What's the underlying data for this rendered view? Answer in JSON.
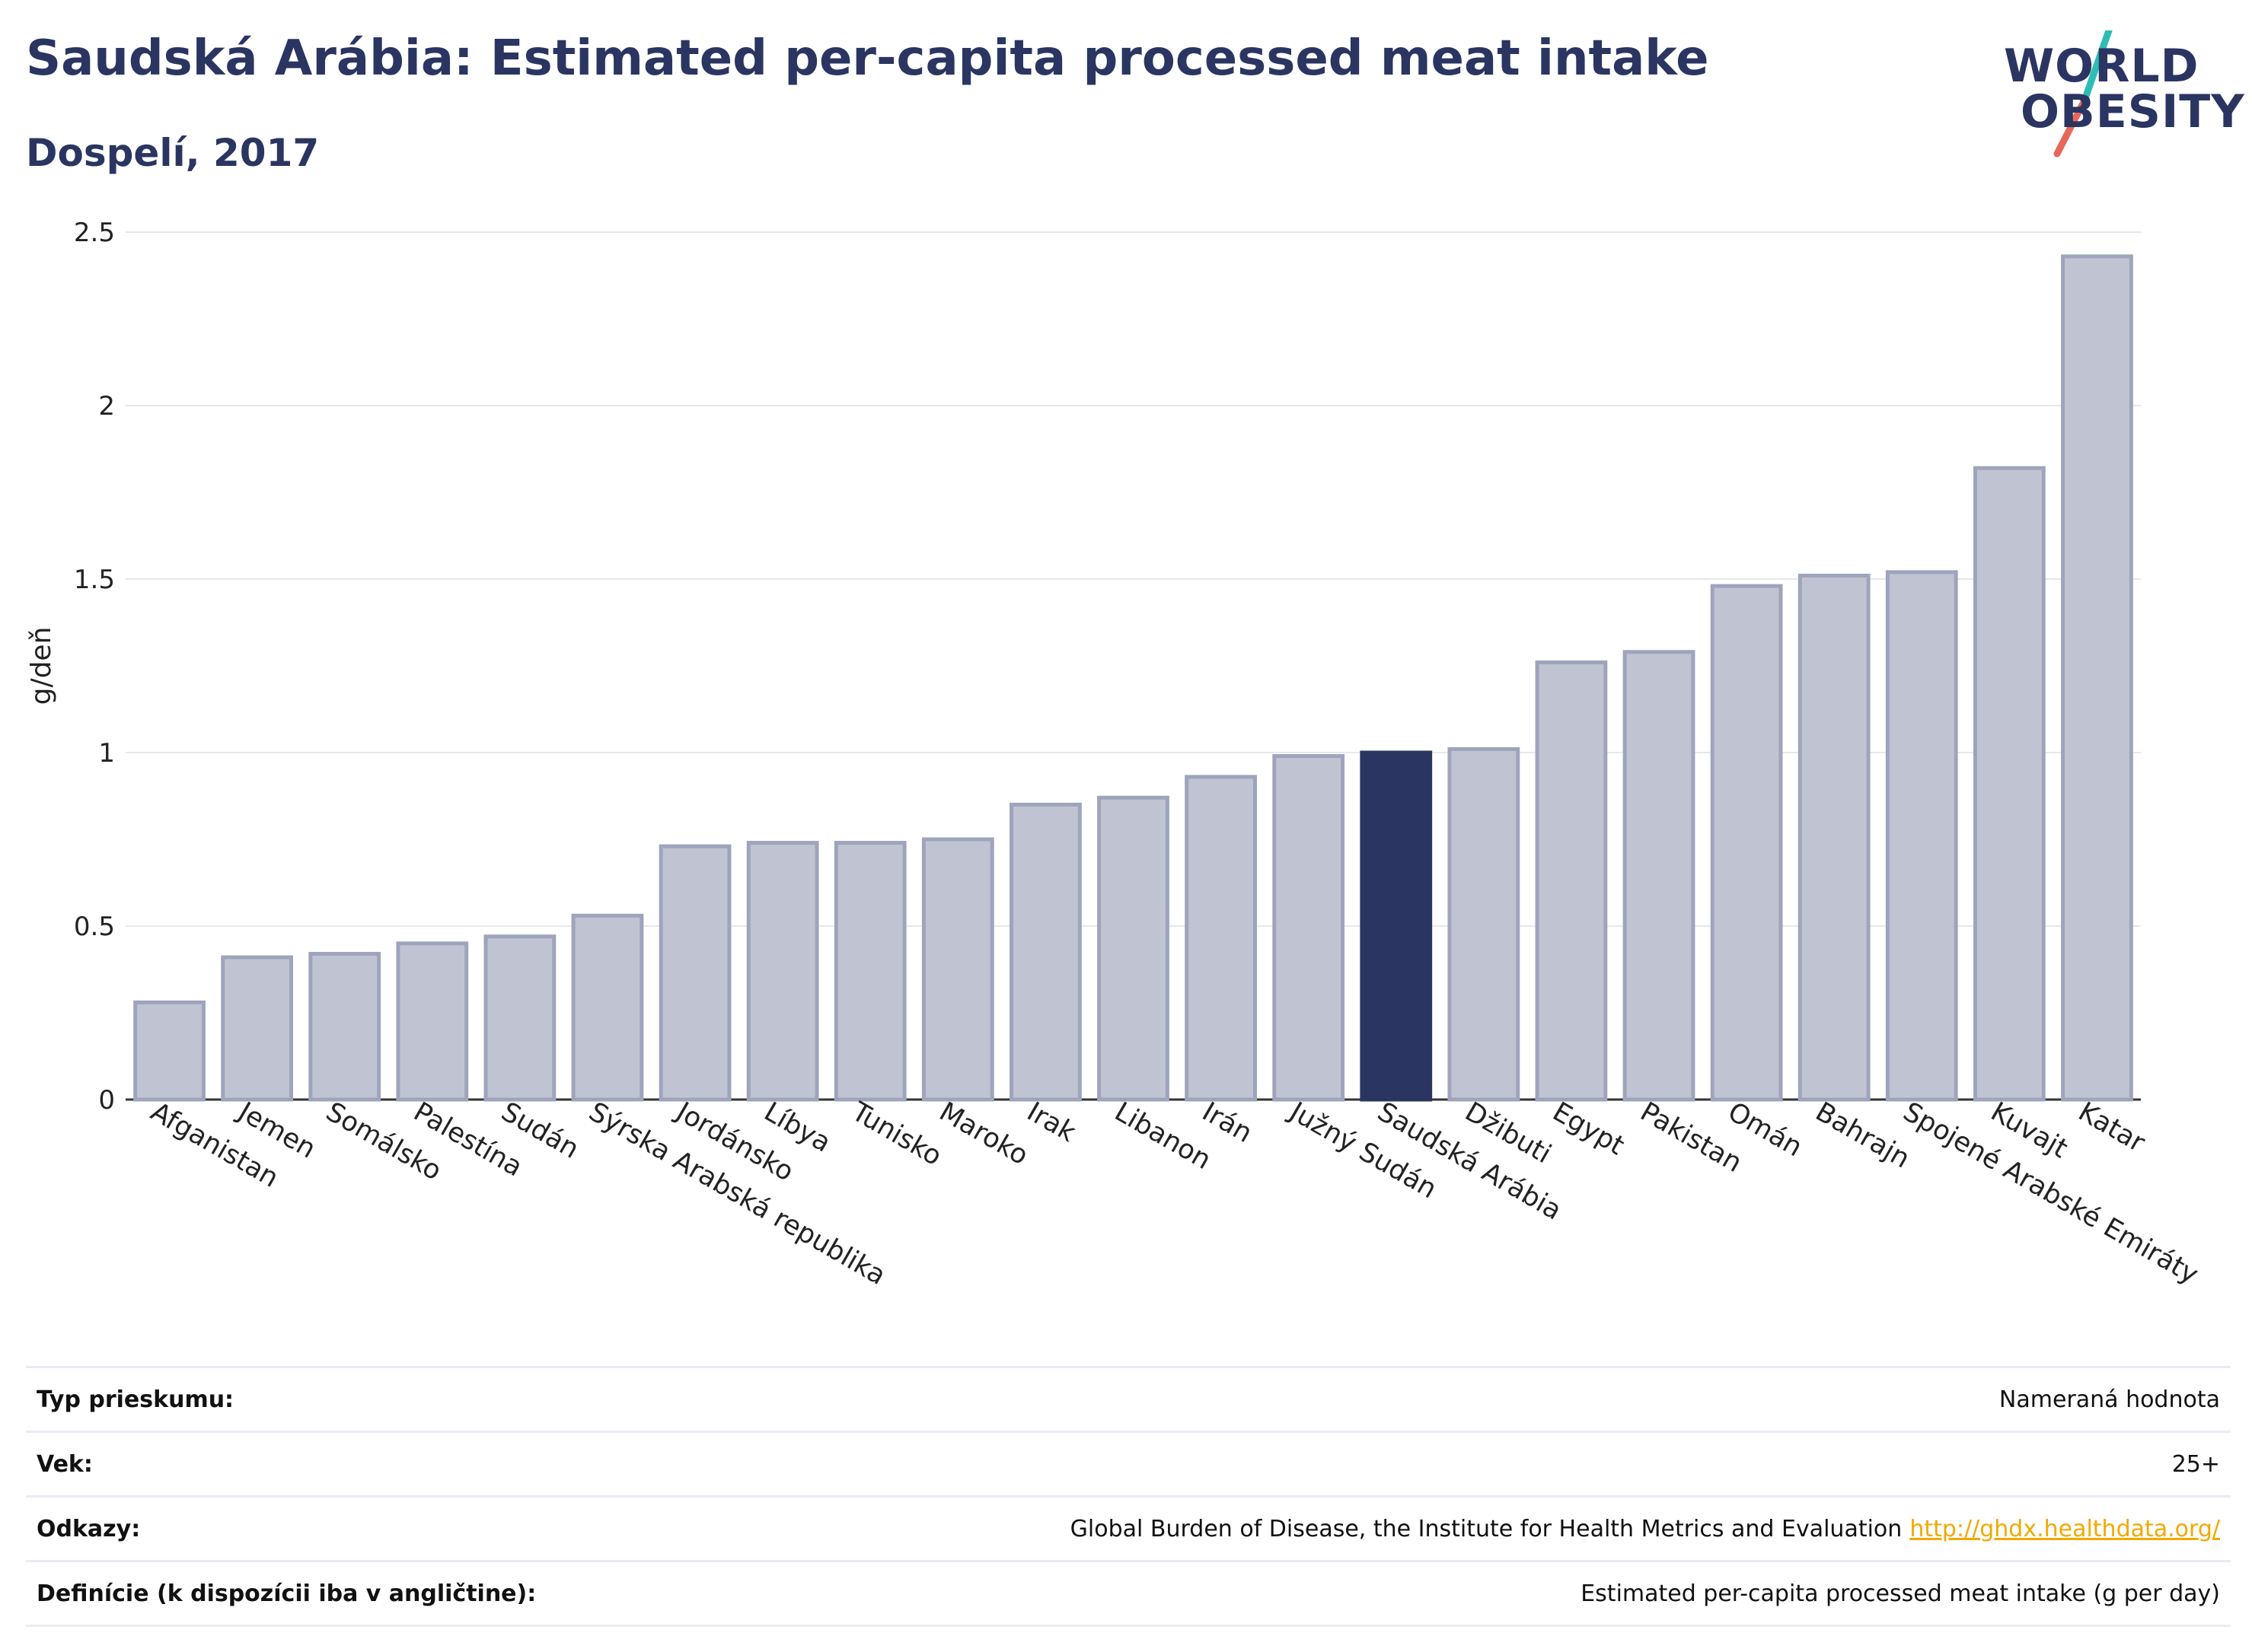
{
  "header": {
    "title": "Saudská Arábia: Estimated per-capita processed meat intake",
    "subtitle": "Dospelí, 2017"
  },
  "logo": {
    "line1": "WORLD",
    "line2": "OBESITY",
    "slash_colors": [
      "#2ebdb5",
      "#e8675b"
    ]
  },
  "colors": {
    "bar_default": "#c0c4d2",
    "bar_stroke": "#9ea4bc",
    "bar_highlight": "#2a3561",
    "grid": "#e6e8ee",
    "axis": "#333333"
  },
  "chart_data": {
    "type": "bar",
    "ylabel": "g/deň",
    "ylim": [
      0,
      2.5
    ],
    "yticks": [
      0,
      0.5,
      1,
      1.5,
      2,
      2.5
    ],
    "ytick_labels": [
      "0",
      "0.5",
      "1",
      "1.5",
      "2",
      "2.5"
    ],
    "grid": true,
    "highlight": "Saudská Arábia",
    "categories": [
      "Afganistan",
      "Jemen",
      "Somálsko",
      "Palestína",
      "Sudán",
      "Sýrska Arabská republika",
      "Jordánsko",
      "Líbya",
      "Tunisko",
      "Maroko",
      "Irak",
      "Libanon",
      "Irán",
      "Južný Sudán",
      "Saudská Arábia",
      "Džibuti",
      "Egypt",
      "Pakistan",
      "Omán",
      "Bahrajn",
      "Spojené Arabské Emiráty",
      "Kuvajt",
      "Katar"
    ],
    "values": [
      0.28,
      0.41,
      0.42,
      0.45,
      0.47,
      0.53,
      0.73,
      0.74,
      0.74,
      0.75,
      0.85,
      0.87,
      0.93,
      0.99,
      1.0,
      1.01,
      1.26,
      1.29,
      1.48,
      1.51,
      1.52,
      1.82,
      2.43
    ]
  },
  "info": [
    {
      "key": "Typ prieskumu:",
      "value": "Nameraná hodnota",
      "link": ""
    },
    {
      "key": "Vek:",
      "value": "25+",
      "link": ""
    },
    {
      "key": "Odkazy:",
      "value": "Global Burden of Disease, the Institute for Health Metrics and Evaluation",
      "link": "http://ghdx.healthdata.org/"
    },
    {
      "key": "Definície (k dispozícii iba v angličtine):",
      "value": "Estimated per-capita processed meat intake (g per day)",
      "link": ""
    }
  ]
}
